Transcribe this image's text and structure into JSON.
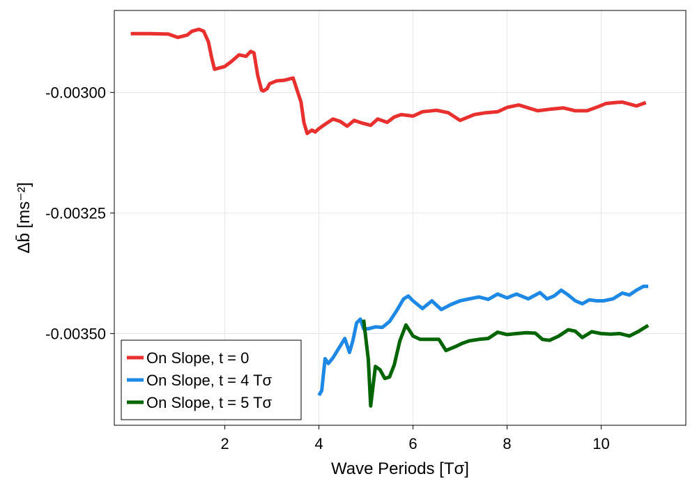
{
  "chart_data": {
    "type": "line",
    "title": "",
    "xlabel": "Wave Periods [Tσ]",
    "ylabel": "Δb̄ [ms⁻²]",
    "xlim": [
      -0.35,
      11.8
    ],
    "ylim": [
      -0.00369,
      -0.00283
    ],
    "xticks": [
      2,
      4,
      6,
      8,
      10
    ],
    "xtick_labels": [
      "2",
      "4",
      "6",
      "8",
      "10"
    ],
    "yticks": [
      -0.003,
      -0.00325,
      -0.0035
    ],
    "ytick_labels": [
      "-0.00300",
      "-0.00325",
      "-0.00350"
    ],
    "grid": true,
    "legend_position": "bottom-left",
    "series": [
      {
        "name": "On Slope, t = 0",
        "color": "#e8302f",
        "x": [
          0,
          0.4,
          0.8,
          1.0,
          1.2,
          1.3,
          1.45,
          1.55,
          1.65,
          1.72,
          1.78,
          2.0,
          2.15,
          2.3,
          2.45,
          2.55,
          2.62,
          2.7,
          2.78,
          2.82,
          2.9,
          2.95,
          3.1,
          3.25,
          3.45,
          3.62,
          3.68,
          3.75,
          3.85,
          3.92,
          4.0,
          4.1,
          4.3,
          4.45,
          4.6,
          4.75,
          4.9,
          5.1,
          5.25,
          5.45,
          5.6,
          5.75,
          6.0,
          6.2,
          6.5,
          6.75,
          7.0,
          7.3,
          7.55,
          7.8,
          8.0,
          8.25,
          8.45,
          8.65,
          8.9,
          9.2,
          9.45,
          9.7,
          9.95,
          10.1,
          10.3,
          10.45,
          10.6,
          10.75,
          10.95
        ],
        "y": [
          -0.002878,
          -0.002878,
          -0.002879,
          -0.002886,
          -0.002881,
          -0.002873,
          -0.002869,
          -0.002873,
          -0.002895,
          -0.002928,
          -0.002952,
          -0.002946,
          -0.002935,
          -0.002922,
          -0.002925,
          -0.002915,
          -0.002918,
          -0.002965,
          -0.002995,
          -0.002997,
          -0.002992,
          -0.002982,
          -0.002976,
          -0.002975,
          -0.00297,
          -0.00302,
          -0.003062,
          -0.003085,
          -0.003078,
          -0.003082,
          -0.003075,
          -0.003068,
          -0.003055,
          -0.00306,
          -0.00307,
          -0.003058,
          -0.003063,
          -0.003068,
          -0.003055,
          -0.003062,
          -0.003051,
          -0.003046,
          -0.003049,
          -0.00304,
          -0.003037,
          -0.003042,
          -0.003058,
          -0.003046,
          -0.003042,
          -0.00304,
          -0.003031,
          -0.003026,
          -0.003032,
          -0.003038,
          -0.003035,
          -0.003032,
          -0.003038,
          -0.003038,
          -0.003029,
          -0.003023,
          -0.003021,
          -0.00302,
          -0.003024,
          -0.003028,
          -0.003021
        ]
      },
      {
        "name": "On Slope, t = 4 Tσ",
        "color": "#1e88e5",
        "x": [
          4.0,
          4.06,
          4.13,
          4.2,
          4.3,
          4.45,
          4.55,
          4.65,
          4.72,
          4.8,
          4.88,
          4.95,
          5.05,
          5.2,
          5.35,
          5.5,
          5.65,
          5.8,
          5.9,
          6.0,
          6.2,
          6.4,
          6.6,
          6.8,
          7.0,
          7.2,
          7.4,
          7.6,
          7.8,
          8.0,
          8.2,
          8.45,
          8.7,
          8.85,
          9.0,
          9.15,
          9.3,
          9.45,
          9.6,
          9.75,
          9.9,
          10.05,
          10.25,
          10.45,
          10.6,
          10.75,
          10.9,
          11.0
        ],
        "y": [
          -0.003628,
          -0.003618,
          -0.003552,
          -0.003562,
          -0.00355,
          -0.003526,
          -0.00351,
          -0.003539,
          -0.003515,
          -0.003478,
          -0.00347,
          -0.00349,
          -0.00349,
          -0.003486,
          -0.003487,
          -0.003475,
          -0.003453,
          -0.003428,
          -0.003422,
          -0.003432,
          -0.003448,
          -0.003432,
          -0.00345,
          -0.00344,
          -0.003432,
          -0.003428,
          -0.003424,
          -0.003429,
          -0.003418,
          -0.003426,
          -0.003418,
          -0.003428,
          -0.003415,
          -0.003428,
          -0.003422,
          -0.00341,
          -0.00342,
          -0.003432,
          -0.003438,
          -0.00343,
          -0.003432,
          -0.003432,
          -0.003428,
          -0.003416,
          -0.00342,
          -0.00341,
          -0.003402,
          -0.003402
        ]
      },
      {
        "name": "On Slope, t = 5 Tσ",
        "color": "#006400",
        "x": [
          4.95,
          5.05,
          5.1,
          5.2,
          5.3,
          5.4,
          5.5,
          5.6,
          5.72,
          5.85,
          6.0,
          6.15,
          6.3,
          6.55,
          6.7,
          6.9,
          7.05,
          7.2,
          7.4,
          7.6,
          7.8,
          8.0,
          8.2,
          8.4,
          8.6,
          8.75,
          8.9,
          9.1,
          9.3,
          9.45,
          9.6,
          9.8,
          10.0,
          10.2,
          10.4,
          10.6,
          10.8,
          11.0
        ],
        "y": [
          -0.003471,
          -0.003553,
          -0.00365,
          -0.003568,
          -0.003575,
          -0.003593,
          -0.00359,
          -0.003565,
          -0.003515,
          -0.003482,
          -0.003505,
          -0.003512,
          -0.003512,
          -0.003512,
          -0.003535,
          -0.003527,
          -0.00352,
          -0.003515,
          -0.003512,
          -0.00351,
          -0.003497,
          -0.003502,
          -0.0035,
          -0.003498,
          -0.003499,
          -0.003512,
          -0.003514,
          -0.003505,
          -0.003492,
          -0.003495,
          -0.003508,
          -0.003496,
          -0.0035,
          -0.003501,
          -0.0035,
          -0.003505,
          -0.003495,
          -0.003483
        ]
      }
    ]
  }
}
